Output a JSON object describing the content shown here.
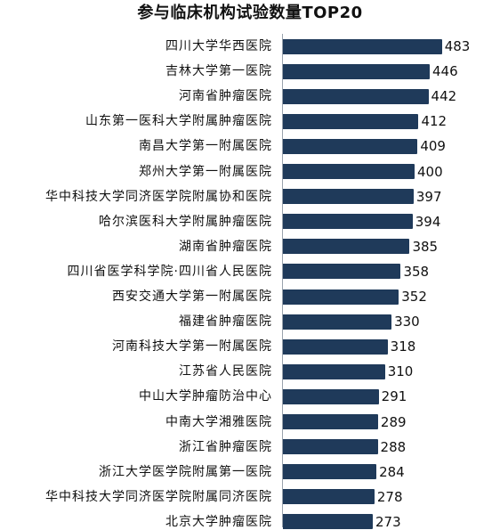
{
  "colors": {
    "bar": "#1f3a5a",
    "text": "#111111",
    "axis": "#9aa3ad"
  },
  "chart_data": {
    "type": "bar",
    "orientation": "horizontal",
    "title": "参与临床机构试验数量TOP20",
    "xlabel": "",
    "ylabel": "",
    "xlim": [
      0,
      500
    ],
    "grid": false,
    "legend": "none",
    "categories": [
      "四川大学华西医院",
      "吉林大学第一医院",
      "河南省肿瘤医院",
      "山东第一医科大学附属肿瘤医院",
      "南昌大学第一附属医院",
      "郑州大学第一附属医院",
      "华中科技大学同济医学院附属协和医院",
      "哈尔滨医科大学附属肿瘤医院",
      "湖南省肿瘤医院",
      "四川省医学科学院·四川省人民医院",
      "西安交通大学第一附属医院",
      "福建省肿瘤医院",
      "河南科技大学第一附属医院",
      "江苏省人民医院",
      "中山大学肿瘤防治中心",
      "中南大学湘雅医院",
      "浙江省肿瘤医院",
      "浙江大学医学院附属第一医院",
      "华中科技大学同济医学院附属同济医院",
      "北京大学肿瘤医院"
    ],
    "series": [
      {
        "values": [
          483,
          446,
          442,
          412,
          409,
          400,
          397,
          394,
          385,
          358,
          352,
          330,
          318,
          310,
          291,
          289,
          288,
          284,
          278,
          273
        ]
      }
    ]
  }
}
